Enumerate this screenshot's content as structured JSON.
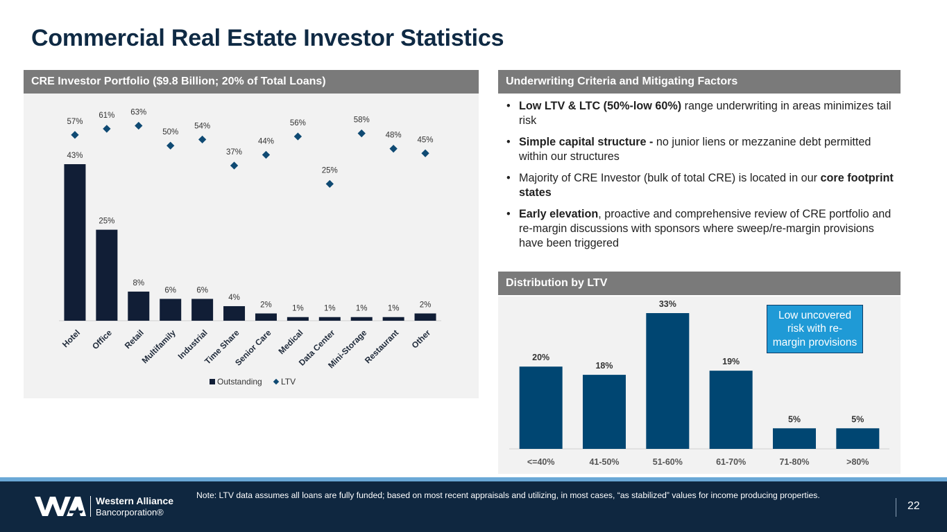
{
  "page": {
    "title": "Commercial Real Estate Investor Statistics",
    "footnote": "Note: LTV data assumes all loans are fully funded; based on most recent appraisals and utilizing, in most cases, “as stabilized” values for income producing properties.",
    "page_number": "22"
  },
  "brand": {
    "name": "Western Alliance",
    "sub": "Bancorporation®",
    "colors": {
      "navy": "#0f2740",
      "accent": "#1f9ad6",
      "bar_dark": "#111e36",
      "bar_blue": "#004672"
    }
  },
  "left_panel": {
    "header": "CRE Investor Portfolio ($9.8 Billion; 20% of Total Loans)"
  },
  "criteria": {
    "header": "Underwriting Criteria and Mitigating Factors",
    "items": [
      {
        "bold": "Low LTV & LTC (50%-low 60%)",
        "text": " range underwriting in areas minimizes tail risk"
      },
      {
        "bold": "Simple capital structure - ",
        "text": "no junior liens or mezzanine debt permitted within our structures"
      },
      {
        "pre": "Majority of CRE Investor (bulk of total CRE) is located in our ",
        "bold": "core footprint states",
        "text": ""
      },
      {
        "bold": "Early elevation",
        "text": ", proactive and comprehensive review of CRE portfolio and re-margin discussions with sponsors where sweep/re-margin provisions have been triggered"
      }
    ]
  },
  "distribution": {
    "header": "Distribution by LTV",
    "callout": "Low uncovered risk with re-margin provisions"
  },
  "chart_data": [
    {
      "type": "bar",
      "categories": [
        "Hotel",
        "Office",
        "Retail",
        "Multifamily",
        "Industrial",
        "Time Share",
        "Senior Care",
        "Medical",
        "Data Center",
        "Mini-Storage",
        "Restaurant",
        "Other"
      ],
      "series": [
        {
          "name": "Outstanding",
          "type": "bar",
          "values": [
            43,
            25,
            8,
            6,
            6,
            4,
            2,
            1,
            1,
            1,
            1,
            2
          ],
          "labels": [
            "43%",
            "25%",
            "8%",
            "6%",
            "6%",
            "4%",
            "2%",
            "1%",
            "1%",
            "1%",
            "1%",
            "2%"
          ]
        },
        {
          "name": "LTV",
          "type": "scatter",
          "values": [
            57,
            61,
            63,
            50,
            54,
            37,
            44,
            56,
            25,
            58,
            48,
            45
          ],
          "labels": [
            "57%",
            "61%",
            "63%",
            "50%",
            "54%",
            "37%",
            "44%",
            "56%",
            "25%",
            "58%",
            "48%",
            "45%"
          ]
        }
      ],
      "legend": "bottom",
      "grid": false
    },
    {
      "type": "bar",
      "categories": [
        "<=40%",
        "41-50%",
        "51-60%",
        "61-70%",
        "71-80%",
        ">80%"
      ],
      "values": [
        20,
        18,
        33,
        19,
        5,
        5
      ],
      "labels": [
        "20%",
        "18%",
        "33%",
        "19%",
        "5%",
        "5%"
      ],
      "grid": false
    }
  ]
}
